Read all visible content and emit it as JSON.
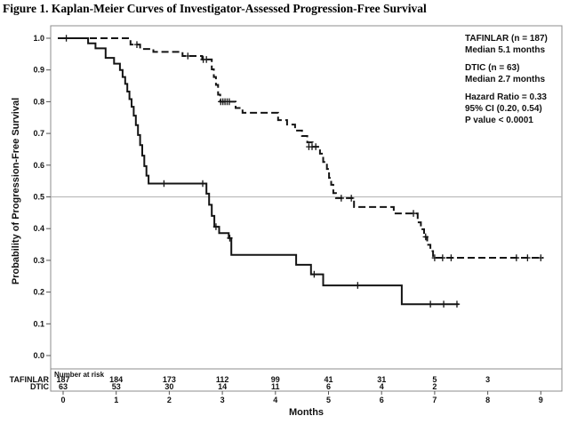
{
  "figure": {
    "title": "Figure 1. Kaplan-Meier Curves of Investigator-Assessed Progression-Free Survival"
  },
  "chart_data": {
    "type": "line",
    "subtype": "kaplan_meier_step",
    "title": "Figure 1. Kaplan-Meier Curves of Investigator-Assessed Progression-Free Survival",
    "xlabel": "Months",
    "ylabel": "Probability of Progression-Free Survival",
    "xlim": [
      0,
      9
    ],
    "ylim": [
      0.0,
      1.0
    ],
    "x_ticks": [
      0,
      1,
      2,
      3,
      4,
      5,
      6,
      7,
      8,
      9
    ],
    "y_ticks": [
      "0.0",
      "0.1",
      "0.2",
      "0.3",
      "0.4",
      "0.5",
      "0.6",
      "0.7",
      "0.8",
      "0.9",
      "1.0"
    ],
    "reference_line_y": 0.5,
    "grid": false,
    "legend_position": "top-right-inside",
    "colors": {
      "curve": "#141414",
      "reference_line": "#b3b3b3",
      "frame": "#8c8c8c"
    },
    "legend": [
      {
        "lines": [
          "TAFINLAR (n = 187)",
          "Median 5.1 months"
        ]
      },
      {
        "lines": [
          "DTIC (n = 63)",
          "Median 2.7 months"
        ]
      },
      {
        "lines": [
          "Hazard Ratio = 0.33",
          "95% CI (0.20, 0.54)",
          "P value < 0.0001"
        ]
      }
    ],
    "series": [
      {
        "name": "TAFINLAR",
        "n": 187,
        "median_months": 5.1,
        "line_style": "dashed",
        "start": [
          0,
          1.0
        ],
        "end_month": 9.05,
        "steps": [
          [
            1.27,
            0.98
          ],
          [
            1.45,
            0.966
          ],
          [
            1.7,
            0.957
          ],
          [
            2.25,
            0.944
          ],
          [
            2.62,
            0.933
          ],
          [
            2.8,
            0.902
          ],
          [
            2.84,
            0.878
          ],
          [
            2.88,
            0.853
          ],
          [
            2.92,
            0.822
          ],
          [
            2.96,
            0.8
          ],
          [
            3.25,
            0.78
          ],
          [
            3.38,
            0.765
          ],
          [
            4.05,
            0.742
          ],
          [
            4.22,
            0.728
          ],
          [
            4.37,
            0.709
          ],
          [
            4.5,
            0.692
          ],
          [
            4.6,
            0.672
          ],
          [
            4.7,
            0.658
          ],
          [
            4.84,
            0.636
          ],
          [
            4.9,
            0.61
          ],
          [
            4.97,
            0.588
          ],
          [
            5.01,
            0.56
          ],
          [
            5.05,
            0.538
          ],
          [
            5.09,
            0.512
          ],
          [
            5.14,
            0.496
          ],
          [
            5.48,
            0.468
          ],
          [
            6.23,
            0.448
          ],
          [
            6.68,
            0.42
          ],
          [
            6.74,
            0.398
          ],
          [
            6.8,
            0.374
          ],
          [
            6.86,
            0.349
          ],
          [
            6.92,
            0.329
          ],
          [
            6.97,
            0.308
          ]
        ],
        "censor_marks": [
          [
            0.06,
            1.0
          ],
          [
            1.39,
            0.98
          ],
          [
            2.35,
            0.944
          ],
          [
            2.64,
            0.933
          ],
          [
            2.7,
            0.933
          ],
          [
            2.97,
            0.8
          ],
          [
            3.01,
            0.8
          ],
          [
            3.05,
            0.8
          ],
          [
            3.09,
            0.8
          ],
          [
            3.13,
            0.8
          ],
          [
            4.63,
            0.658
          ],
          [
            4.69,
            0.658
          ],
          [
            4.76,
            0.658
          ],
          [
            5.24,
            0.496
          ],
          [
            5.43,
            0.496
          ],
          [
            6.6,
            0.448
          ],
          [
            6.83,
            0.374
          ],
          [
            7.0,
            0.308
          ],
          [
            7.15,
            0.308
          ],
          [
            7.31,
            0.308
          ],
          [
            8.54,
            0.308
          ],
          [
            8.75,
            0.308
          ],
          [
            9.0,
            0.308
          ]
        ]
      },
      {
        "name": "DTIC",
        "n": 63,
        "median_months": 2.7,
        "line_style": "solid",
        "start": [
          0,
          1.0
        ],
        "end_month": 7.45,
        "steps": [
          [
            0.47,
            0.984
          ],
          [
            0.61,
            0.968
          ],
          [
            0.8,
            0.938
          ],
          [
            0.96,
            0.92
          ],
          [
            1.07,
            0.9
          ],
          [
            1.12,
            0.878
          ],
          [
            1.17,
            0.856
          ],
          [
            1.21,
            0.832
          ],
          [
            1.25,
            0.808
          ],
          [
            1.29,
            0.784
          ],
          [
            1.33,
            0.756
          ],
          [
            1.37,
            0.726
          ],
          [
            1.41,
            0.695
          ],
          [
            1.45,
            0.663
          ],
          [
            1.49,
            0.63
          ],
          [
            1.53,
            0.597
          ],
          [
            1.57,
            0.567
          ],
          [
            1.61,
            0.542
          ],
          [
            2.7,
            0.51
          ],
          [
            2.75,
            0.475
          ],
          [
            2.8,
            0.44
          ],
          [
            2.85,
            0.406
          ],
          [
            2.94,
            0.386
          ],
          [
            3.12,
            0.37
          ],
          [
            3.17,
            0.317
          ],
          [
            4.39,
            0.286
          ],
          [
            4.67,
            0.256
          ],
          [
            4.9,
            0.221
          ],
          [
            6.38,
            0.162
          ]
        ],
        "censor_marks": [
          [
            1.9,
            0.542
          ],
          [
            2.63,
            0.542
          ],
          [
            2.88,
            0.406
          ],
          [
            3.14,
            0.37
          ],
          [
            4.73,
            0.256
          ],
          [
            5.55,
            0.221
          ],
          [
            6.92,
            0.162
          ],
          [
            7.17,
            0.162
          ],
          [
            7.42,
            0.162
          ]
        ]
      }
    ],
    "risk_table": {
      "label": "Number at risk",
      "months": [
        0,
        1,
        2,
        3,
        4,
        5,
        6,
        7,
        8
      ],
      "rows": [
        {
          "name": "TAFINLAR",
          "values": [
            "187",
            "184",
            "173",
            "112",
            "99",
            "41",
            "31",
            "5",
            "3"
          ]
        },
        {
          "name": "DTIC",
          "values": [
            "63",
            "53",
            "30",
            "14",
            "11",
            "6",
            "4",
            "2",
            ""
          ]
        }
      ]
    }
  }
}
